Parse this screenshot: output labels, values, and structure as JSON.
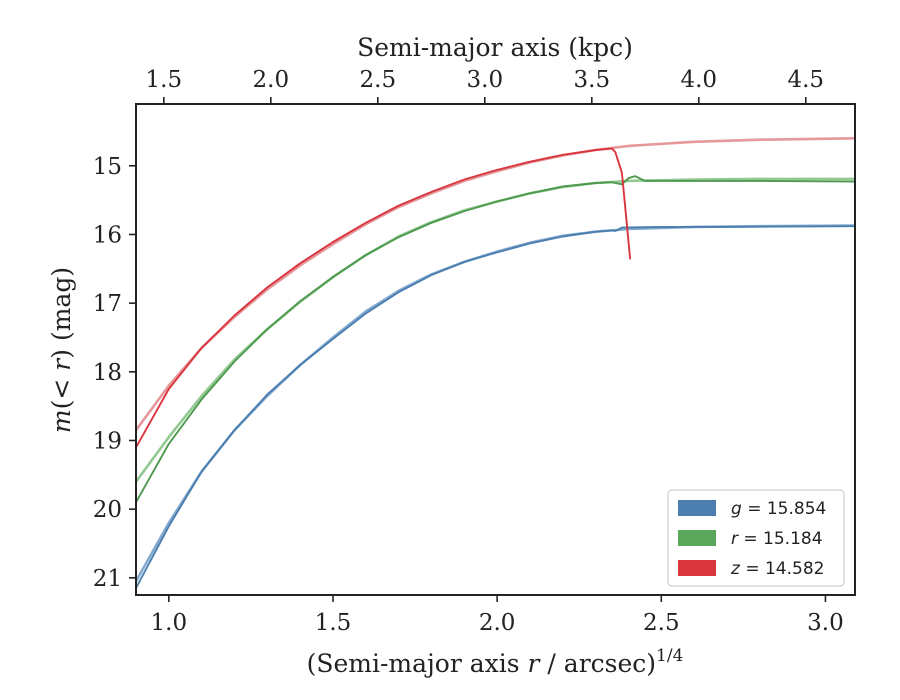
{
  "chart_data": {
    "type": "line",
    "xlabel_bottom_prefix": "(Semi-major axis ",
    "xlabel_bottom_var": "r",
    "xlabel_bottom_suffix": " / arcsec)",
    "xlabel_bottom_exp": "1/4",
    "xlabel_top": "Semi-major axis (kpc)",
    "ylabel_prefix": "m",
    "ylabel_middle": "(< ",
    "ylabel_var": "r",
    "ylabel_suffix": ") (mag)",
    "xlim": [
      0.9,
      3.09
    ],
    "ylim": [
      21.25,
      14.1
    ],
    "y_inverted": true,
    "x_ticks": [
      {
        "value": 1.0,
        "label": "1.0"
      },
      {
        "value": 1.5,
        "label": "1.5"
      },
      {
        "value": 2.0,
        "label": "2.0"
      },
      {
        "value": 2.5,
        "label": "2.5"
      },
      {
        "value": 3.0,
        "label": "3.0"
      }
    ],
    "y_ticks": [
      {
        "value": 15,
        "label": "15"
      },
      {
        "value": 16,
        "label": "16"
      },
      {
        "value": 17,
        "label": "17"
      },
      {
        "value": 18,
        "label": "18"
      },
      {
        "value": 19,
        "label": "19"
      },
      {
        "value": 20,
        "label": "20"
      },
      {
        "value": 21,
        "label": "21"
      }
    ],
    "top_axis": {
      "xlim": [
        1.37,
        4.73
      ],
      "ticks": [
        {
          "value": 1.5,
          "label": "1.5"
        },
        {
          "value": 2.0,
          "label": "2.0"
        },
        {
          "value": 2.5,
          "label": "2.5"
        },
        {
          "value": 3.0,
          "label": "3.0"
        },
        {
          "value": 3.5,
          "label": "3.5"
        },
        {
          "value": 4.0,
          "label": "4.0"
        },
        {
          "value": 4.5,
          "label": "4.5"
        }
      ]
    },
    "legend_position": "lower-right",
    "legend": [
      {
        "var": "g",
        "text": " = 15.854",
        "color": "#4c7fb0"
      },
      {
        "var": "r",
        "text": " = 15.184",
        "color": "#5aa65a"
      },
      {
        "var": "z",
        "text": " = 14.582",
        "color": "#d9363e"
      }
    ],
    "series": [
      {
        "band": "g",
        "kind": "model",
        "color": "#6e9cc7",
        "x": [
          0.9,
          1.0,
          1.1,
          1.2,
          1.3,
          1.4,
          1.5,
          1.6,
          1.7,
          1.8,
          1.9,
          2.0,
          2.1,
          2.2,
          2.3,
          2.4,
          2.6,
          2.8,
          3.09
        ],
        "y": [
          21.05,
          20.2,
          19.45,
          18.85,
          18.35,
          17.9,
          17.5,
          17.12,
          16.82,
          16.58,
          16.4,
          16.25,
          16.12,
          16.02,
          15.96,
          15.92,
          15.89,
          15.88,
          15.87
        ]
      },
      {
        "band": "g",
        "kind": "data",
        "color": "#4c7fb0",
        "x": [
          0.9,
          1.0,
          1.1,
          1.2,
          1.3,
          1.4,
          1.5,
          1.6,
          1.7,
          1.8,
          1.9,
          2.0,
          2.1,
          2.2,
          2.3,
          2.35,
          2.36,
          2.38,
          2.5,
          2.7,
          3.09
        ],
        "y": [
          21.15,
          20.25,
          19.45,
          18.85,
          18.33,
          17.9,
          17.52,
          17.15,
          16.84,
          16.59,
          16.4,
          16.26,
          16.13,
          16.03,
          15.96,
          15.94,
          15.95,
          15.9,
          15.89,
          15.89,
          15.88
        ]
      },
      {
        "band": "r",
        "kind": "model",
        "color": "#7fbf7f",
        "x": [
          0.9,
          1.0,
          1.1,
          1.2,
          1.3,
          1.4,
          1.5,
          1.6,
          1.7,
          1.8,
          1.9,
          2.0,
          2.1,
          2.2,
          2.3,
          2.4,
          2.6,
          2.8,
          3.09
        ],
        "y": [
          19.6,
          18.95,
          18.35,
          17.82,
          17.38,
          16.98,
          16.62,
          16.3,
          16.03,
          15.82,
          15.65,
          15.52,
          15.4,
          15.31,
          15.25,
          15.22,
          15.2,
          15.19,
          15.19
        ]
      },
      {
        "band": "r",
        "kind": "data",
        "color": "#4e9a4e",
        "x": [
          0.9,
          1.0,
          1.1,
          1.2,
          1.3,
          1.4,
          1.5,
          1.6,
          1.7,
          1.8,
          1.9,
          2.0,
          2.1,
          2.2,
          2.3,
          2.35,
          2.38,
          2.4,
          2.42,
          2.45,
          2.6,
          2.8,
          3.09
        ],
        "y": [
          19.9,
          19.05,
          18.4,
          17.85,
          17.38,
          16.97,
          16.62,
          16.3,
          16.04,
          15.83,
          15.66,
          15.52,
          15.4,
          15.3,
          15.25,
          15.24,
          15.27,
          15.18,
          15.15,
          15.22,
          15.22,
          15.22,
          15.23
        ]
      },
      {
        "band": "z",
        "kind": "model",
        "color": "#e0858a",
        "x": [
          0.9,
          1.0,
          1.1,
          1.2,
          1.3,
          1.4,
          1.5,
          1.6,
          1.7,
          1.8,
          1.9,
          2.0,
          2.1,
          2.2,
          2.3,
          2.4,
          2.6,
          2.8,
          3.09
        ],
        "y": [
          18.85,
          18.2,
          17.65,
          17.2,
          16.8,
          16.45,
          16.14,
          15.85,
          15.6,
          15.4,
          15.22,
          15.08,
          14.95,
          14.85,
          14.77,
          14.71,
          14.65,
          14.62,
          14.6
        ]
      },
      {
        "band": "z",
        "kind": "data",
        "color": "#d9363e",
        "x": [
          0.9,
          1.0,
          1.1,
          1.2,
          1.3,
          1.4,
          1.5,
          1.6,
          1.7,
          1.8,
          1.9,
          2.0,
          2.1,
          2.2,
          2.3,
          2.35,
          2.36,
          2.38,
          2.39,
          2.405
        ],
        "y": [
          19.1,
          18.25,
          17.65,
          17.18,
          16.77,
          16.42,
          16.11,
          15.83,
          15.58,
          15.38,
          15.2,
          15.06,
          14.94,
          14.84,
          14.77,
          14.75,
          14.8,
          15.1,
          15.6,
          16.35
        ]
      }
    ]
  }
}
